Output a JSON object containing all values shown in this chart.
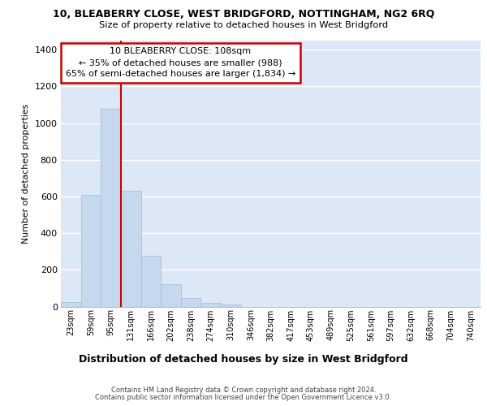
{
  "title1": "10, BLEABERRY CLOSE, WEST BRIDGFORD, NOTTINGHAM, NG2 6RQ",
  "title2": "Size of property relative to detached houses in West Bridgford",
  "xlabel": "Distribution of detached houses by size in West Bridgford",
  "ylabel": "Number of detached properties",
  "categories": [
    "23sqm",
    "59sqm",
    "95sqm",
    "131sqm",
    "166sqm",
    "202sqm",
    "238sqm",
    "274sqm",
    "310sqm",
    "346sqm",
    "382sqm",
    "417sqm",
    "453sqm",
    "489sqm",
    "525sqm",
    "561sqm",
    "597sqm",
    "632sqm",
    "668sqm",
    "704sqm",
    "740sqm"
  ],
  "values": [
    25,
    610,
    1080,
    630,
    275,
    120,
    47,
    20,
    10,
    0,
    0,
    0,
    0,
    0,
    0,
    0,
    0,
    0,
    0,
    0,
    0
  ],
  "bar_color": "#c5d8ee",
  "bar_edge_color": "#9bbdd8",
  "background_color": "#dce8f5",
  "grid_color": "#ffffff",
  "vline_color": "#cc0000",
  "vline_x": 2.5,
  "annotation_line1": "10 BLEABERRY CLOSE: 108sqm",
  "annotation_line2": "← 35% of detached houses are smaller (988)",
  "annotation_line3": "65% of semi-detached houses are larger (1,834) →",
  "annotation_box_facecolor": "white",
  "annotation_box_edgecolor": "#cc0000",
  "ylim": [
    0,
    1450
  ],
  "yticks": [
    0,
    200,
    400,
    600,
    800,
    1000,
    1200,
    1400
  ],
  "footer1": "Contains HM Land Registry data © Crown copyright and database right 2024.",
  "footer2": "Contains public sector information licensed under the Open Government Licence v3.0."
}
